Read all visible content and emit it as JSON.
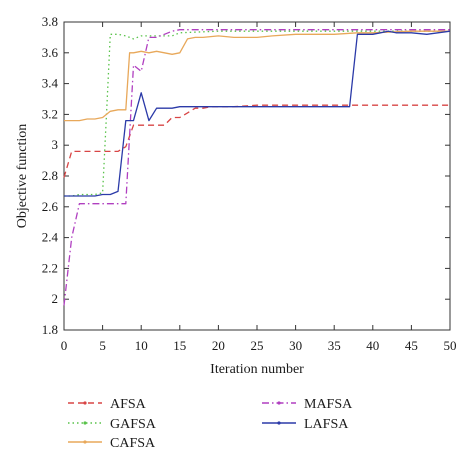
{
  "chart_data": {
    "type": "line",
    "title": "",
    "xlabel": "Iteration number",
    "ylabel": "Objective function",
    "xlim": [
      0,
      50
    ],
    "ylim": [
      1.8,
      3.8
    ],
    "xticks": [
      0,
      5,
      10,
      15,
      20,
      25,
      30,
      35,
      40,
      45,
      50
    ],
    "yticks": [
      1.8,
      2,
      2.2,
      2.4,
      2.6,
      2.8,
      3,
      3.2,
      3.4,
      3.6,
      3.8
    ],
    "grid": false,
    "legend_position": "bottom",
    "series": [
      {
        "name": "AFSA",
        "color": "#d84545",
        "dash": "6,4",
        "x": [
          0,
          1,
          2,
          3,
          4,
          5,
          6,
          7,
          8,
          9,
          10,
          11,
          12,
          13,
          14,
          15,
          16,
          17,
          18,
          19,
          20,
          22,
          25,
          30,
          35,
          37,
          40,
          45,
          50
        ],
        "y": [
          2.79,
          2.96,
          2.96,
          2.96,
          2.96,
          2.96,
          2.96,
          2.96,
          2.99,
          3.13,
          3.13,
          3.13,
          3.13,
          3.13,
          3.18,
          3.18,
          3.21,
          3.24,
          3.24,
          3.25,
          3.25,
          3.25,
          3.26,
          3.26,
          3.26,
          3.26,
          3.26,
          3.26,
          3.26
        ]
      },
      {
        "name": "GAFSA",
        "color": "#59c24a",
        "dash": "1.5,3",
        "x": [
          0,
          1,
          2,
          3,
          4,
          5,
          5.5,
          6,
          7,
          8,
          9,
          10,
          11,
          12,
          13,
          14,
          15,
          20,
          25,
          30,
          35,
          40,
          45,
          50
        ],
        "y": [
          2.67,
          2.67,
          2.68,
          2.68,
          2.68,
          2.69,
          3.2,
          3.72,
          3.72,
          3.71,
          3.69,
          3.71,
          3.71,
          3.71,
          3.71,
          3.71,
          3.73,
          3.74,
          3.74,
          3.74,
          3.74,
          3.74,
          3.74,
          3.74
        ]
      },
      {
        "name": "CAFSA",
        "color": "#e8a85a",
        "dash": "",
        "x": [
          0,
          1,
          2,
          3,
          4,
          5,
          6,
          7,
          8,
          8.5,
          9,
          10,
          11,
          12,
          13,
          14,
          15,
          16,
          17,
          18,
          20,
          22,
          25,
          27,
          30,
          35,
          38,
          40,
          45,
          50
        ],
        "y": [
          3.16,
          3.16,
          3.16,
          3.17,
          3.17,
          3.18,
          3.22,
          3.23,
          3.23,
          3.6,
          3.6,
          3.61,
          3.6,
          3.61,
          3.6,
          3.59,
          3.6,
          3.69,
          3.7,
          3.7,
          3.71,
          3.7,
          3.7,
          3.71,
          3.72,
          3.72,
          3.73,
          3.73,
          3.74,
          3.74
        ]
      },
      {
        "name": "MAFSA",
        "color": "#b03fc0",
        "dash": "7,3,1.5,3",
        "x": [
          0,
          1,
          2,
          3,
          4,
          5,
          6,
          7,
          8,
          9,
          10,
          11,
          12,
          13,
          14,
          15,
          20,
          25,
          30,
          35,
          40,
          45,
          50
        ],
        "y": [
          1.96,
          2.4,
          2.62,
          2.62,
          2.62,
          2.62,
          2.62,
          2.62,
          2.62,
          3.52,
          3.48,
          3.7,
          3.7,
          3.72,
          3.74,
          3.75,
          3.75,
          3.75,
          3.75,
          3.75,
          3.75,
          3.75,
          3.75
        ]
      },
      {
        "name": "LAFSA",
        "color": "#2b3aa8",
        "dash": "",
        "x": [
          0,
          1,
          2,
          3,
          4,
          5,
          6,
          7,
          8,
          9,
          10,
          11,
          12,
          13,
          14,
          15,
          20,
          25,
          30,
          35,
          37,
          38,
          39,
          40,
          41,
          42,
          43,
          45,
          47,
          50
        ],
        "y": [
          2.67,
          2.67,
          2.67,
          2.67,
          2.67,
          2.68,
          2.68,
          2.7,
          3.16,
          3.16,
          3.34,
          3.16,
          3.24,
          3.24,
          3.24,
          3.25,
          3.25,
          3.25,
          3.25,
          3.25,
          3.25,
          3.72,
          3.72,
          3.72,
          3.73,
          3.74,
          3.73,
          3.73,
          3.72,
          3.74
        ]
      }
    ]
  }
}
